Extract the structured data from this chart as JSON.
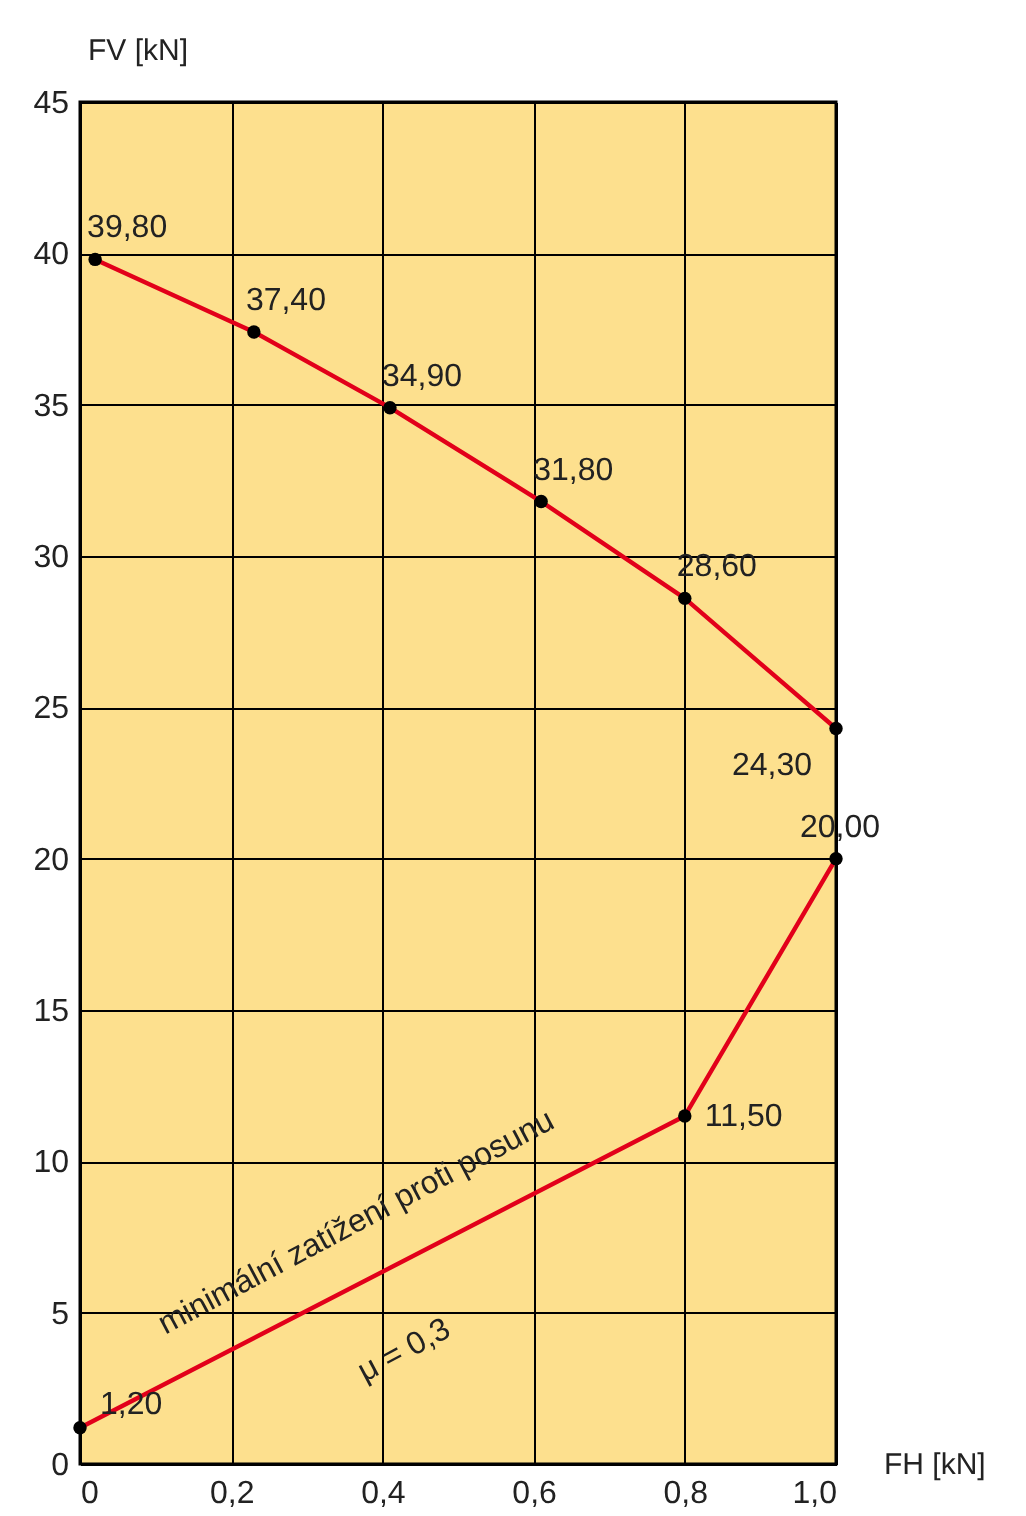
{
  "chart_data": {
    "type": "line",
    "xlabel": "FH [kN]",
    "ylabel": "FV [kN]",
    "xlim": [
      0,
      1.0
    ],
    "ylim": [
      0,
      45
    ],
    "xticks": [
      0,
      {
        "value": 0.2,
        "label": "0,2"
      },
      {
        "value": 0.4,
        "label": "0,4"
      },
      {
        "value": 0.6,
        "label": "0,6"
      },
      {
        "value": 0.8,
        "label": "0,8"
      },
      {
        "value": 1.0,
        "label": "1,0"
      }
    ],
    "yticks": [
      0,
      5,
      10,
      15,
      20,
      25,
      30,
      35,
      40,
      45
    ],
    "grid": true,
    "marker": "circle",
    "line_style": "solid",
    "series": [
      {
        "color": "#e2001a",
        "x": [
          0.02,
          0.23,
          0.41,
          0.61,
          0.8,
          1.0
        ],
        "values": [
          39.8,
          37.4,
          34.9,
          31.8,
          28.6,
          24.3
        ],
        "value_labels": [
          "39,80",
          "37,40",
          "34,90",
          "31,80",
          "28,60",
          "24,30"
        ]
      },
      {
        "color": "#e2001a",
        "x": [
          0,
          0.8,
          1.0
        ],
        "values": [
          1.2,
          11.5,
          20.0
        ],
        "value_labels": [
          "1,20",
          "11,50",
          "20,00"
        ]
      }
    ],
    "annotations": [
      "minimální zatížení proti posunu",
      "μ = 0,3"
    ]
  }
}
